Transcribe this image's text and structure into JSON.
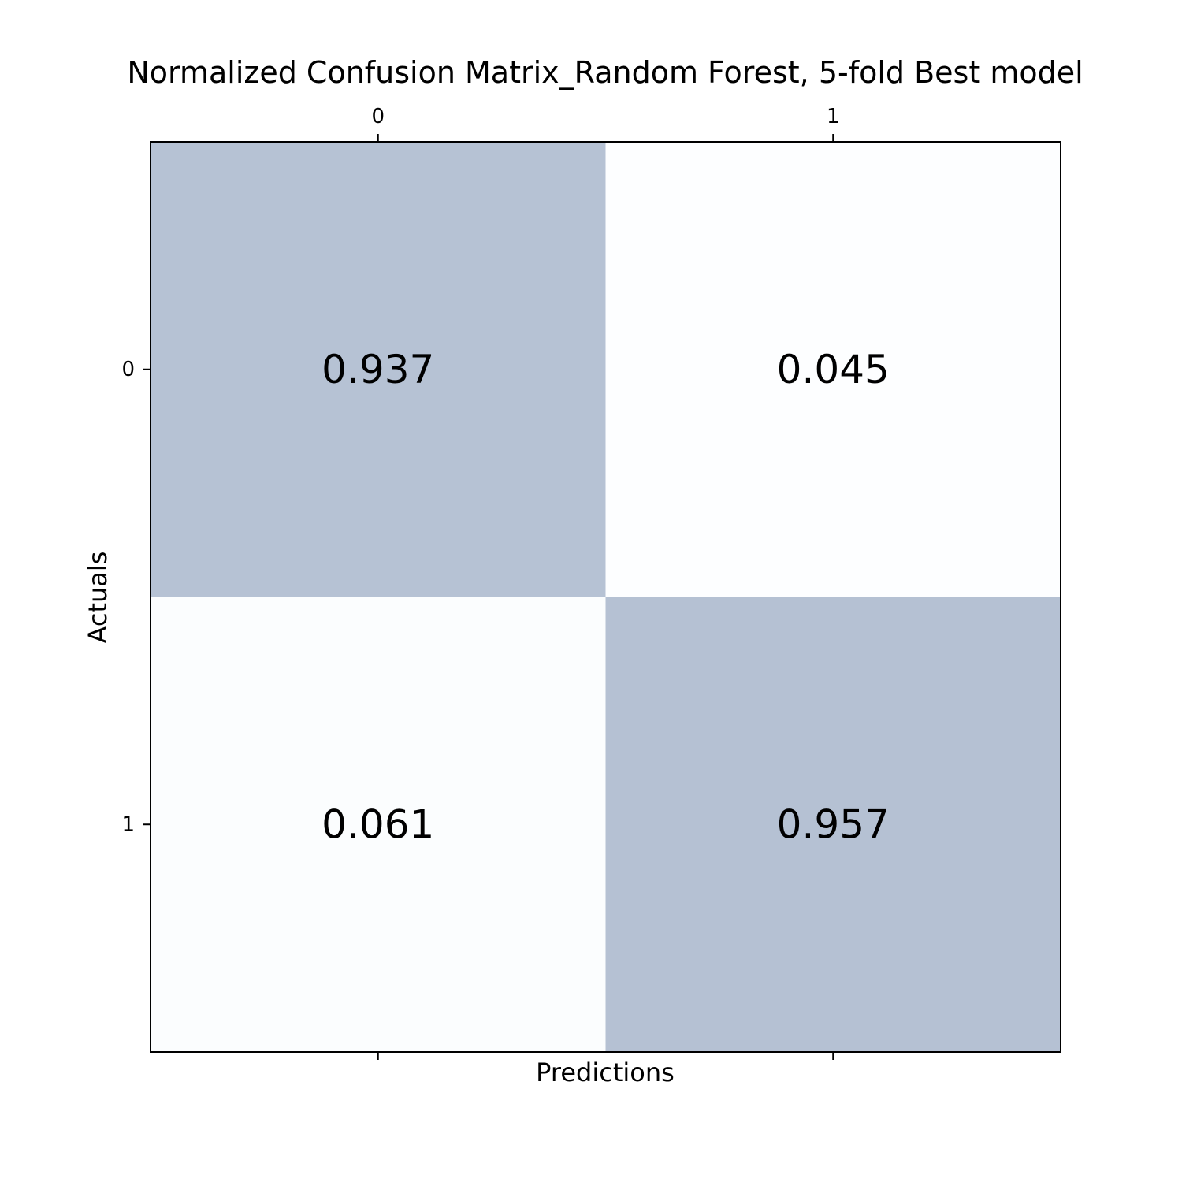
{
  "chart_data": {
    "type": "heatmap",
    "title": "Normalized Confusion Matrix_Random Forest, 5-fold Best model",
    "xlabel": "Predictions",
    "ylabel": "Actuals",
    "x_categories": [
      "0",
      "1"
    ],
    "y_categories": [
      "0",
      "1"
    ],
    "values": [
      [
        0.937,
        0.045
      ],
      [
        0.061,
        0.957
      ]
    ],
    "value_labels": [
      [
        "0.937",
        "0.045"
      ],
      [
        "0.061",
        "0.957"
      ]
    ],
    "x_ticks_position": "top",
    "colormap": {
      "low": "#f7fbff",
      "high": "#08306b",
      "alpha": 0.3
    },
    "grid": false,
    "legend": "none"
  }
}
